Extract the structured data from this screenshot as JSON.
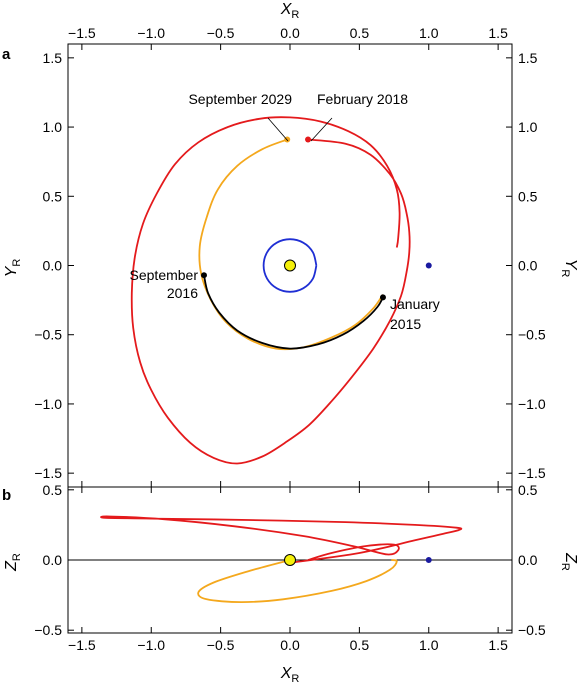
{
  "chart_data": [
    {
      "panel": "a",
      "type": "line",
      "xlabel": "X_R",
      "ylabel": "Y_R",
      "xlim": [
        -1.6,
        1.6
      ],
      "ylim": [
        -1.6,
        1.6
      ],
      "xticks": [
        -1.5,
        -1.0,
        -0.5,
        0.0,
        0.5,
        1.0,
        1.5
      ],
      "yticks": [
        -1.5,
        -1.0,
        -0.5,
        0.0,
        0.5,
        1.0,
        1.5
      ],
      "xtick_labels": [
        "−1.5",
        "−1.0",
        "−0.5",
        "0.0",
        "0.5",
        "1.0",
        "1.5"
      ],
      "ytick_labels": [
        "−1.5",
        "−1.0",
        "−0.5",
        "0.0",
        "0.5",
        "1.0",
        "1.5"
      ],
      "series": [
        {
          "color": "#e41a1c",
          "points": [
            [
              0.13,
              0.91
            ],
            [
              0.4,
              0.88
            ],
            [
              0.58,
              0.8
            ],
            [
              0.72,
              0.66
            ],
            [
              0.8,
              0.52
            ],
            [
              0.84,
              0.38
            ],
            [
              0.86,
              0.24
            ],
            [
              0.86,
              0.1
            ],
            [
              0.84,
              -0.05
            ],
            [
              0.8,
              -0.22
            ],
            [
              0.72,
              -0.4
            ],
            [
              0.6,
              -0.6
            ],
            [
              0.45,
              -0.8
            ],
            [
              0.3,
              -0.98
            ],
            [
              0.14,
              -1.15
            ],
            [
              -0.02,
              -1.27
            ],
            [
              -0.2,
              -1.38
            ],
            [
              -0.38,
              -1.43
            ],
            [
              -0.55,
              -1.39
            ],
            [
              -0.72,
              -1.28
            ],
            [
              -0.88,
              -1.1
            ],
            [
              -1.0,
              -0.9
            ],
            [
              -1.08,
              -0.7
            ],
            [
              -1.13,
              -0.45
            ],
            [
              -1.14,
              -0.2
            ],
            [
              -1.12,
              0.05
            ],
            [
              -1.06,
              0.3
            ],
            [
              -0.96,
              0.52
            ],
            [
              -0.83,
              0.73
            ],
            [
              -0.66,
              0.89
            ],
            [
              -0.45,
              1.0
            ],
            [
              -0.22,
              1.06
            ],
            [
              0.0,
              1.07
            ],
            [
              0.22,
              1.04
            ],
            [
              0.42,
              0.97
            ],
            [
              0.58,
              0.87
            ],
            [
              0.7,
              0.72
            ],
            [
              0.77,
              0.55
            ],
            [
              0.79,
              0.38
            ],
            [
              0.78,
              0.2
            ],
            [
              0.77,
              0.13
            ]
          ]
        },
        {
          "color": "#f4a81d",
          "points": [
            [
              -0.02,
              0.91
            ],
            [
              -0.2,
              0.84
            ],
            [
              -0.38,
              0.72
            ],
            [
              -0.52,
              0.55
            ],
            [
              -0.6,
              0.35
            ],
            [
              -0.65,
              0.14
            ],
            [
              -0.64,
              -0.06
            ],
            [
              -0.57,
              -0.25
            ],
            [
              -0.46,
              -0.41
            ],
            [
              -0.3,
              -0.53
            ],
            [
              -0.1,
              -0.6
            ],
            [
              0.1,
              -0.59
            ],
            [
              0.3,
              -0.52
            ],
            [
              0.47,
              -0.43
            ],
            [
              0.6,
              -0.31
            ],
            [
              0.67,
              -0.21
            ]
          ]
        },
        {
          "color": "#000000",
          "points": [
            [
              -0.62,
              -0.07
            ],
            [
              -0.59,
              -0.2
            ],
            [
              -0.51,
              -0.34
            ],
            [
              -0.38,
              -0.47
            ],
            [
              -0.2,
              -0.56
            ],
            [
              0.0,
              -0.6
            ],
            [
              0.2,
              -0.57
            ],
            [
              0.38,
              -0.5
            ],
            [
              0.53,
              -0.4
            ],
            [
              0.63,
              -0.3
            ],
            [
              0.67,
              -0.23
            ]
          ]
        },
        {
          "color": "#1f2fd4",
          "points": [
            [
              0.19,
              0.0
            ],
            [
              0.165,
              0.095
            ],
            [
              0.095,
              0.165
            ],
            [
              0.0,
              0.19
            ],
            [
              -0.095,
              0.165
            ],
            [
              -0.165,
              0.095
            ],
            [
              -0.19,
              0.0
            ],
            [
              -0.165,
              -0.095
            ],
            [
              -0.095,
              -0.165
            ],
            [
              0.0,
              -0.19
            ],
            [
              0.095,
              -0.165
            ],
            [
              0.165,
              -0.095
            ],
            [
              0.19,
              0.0
            ]
          ]
        }
      ],
      "markers": [
        {
          "x": 0.0,
          "y": 0.0,
          "color": "#f5f00a"
        },
        {
          "x": 1.0,
          "y": 0.0,
          "color": "#1a1aa0"
        },
        {
          "x": -0.02,
          "y": 0.91,
          "color": "#f4a81d"
        },
        {
          "x": 0.13,
          "y": 0.91,
          "color": "#e41a1c"
        },
        {
          "x": -0.62,
          "y": -0.07,
          "color": "#000000"
        },
        {
          "x": 0.67,
          "y": -0.23,
          "color": "#000000"
        }
      ],
      "annotations": [
        {
          "lines": [
            "September 2029"
          ]
        },
        {
          "lines": [
            "February 2018"
          ]
        },
        {
          "lines": [
            "September",
            "2016"
          ]
        },
        {
          "lines": [
            "January",
            "2015"
          ]
        }
      ]
    },
    {
      "panel": "b",
      "type": "line",
      "xlabel": "X_R",
      "ylabel": "Z_R",
      "xlim": [
        -1.6,
        1.6
      ],
      "ylim": [
        -0.52,
        0.52
      ],
      "xticks": [
        -1.5,
        -1.0,
        -0.5,
        0.0,
        0.5,
        1.0,
        1.5
      ],
      "yticks": [
        -0.5,
        0.0,
        0.5
      ],
      "xtick_labels": [
        "−1.5",
        "−1.0",
        "−0.5",
        "0.0",
        "0.5",
        "1.0",
        "1.5"
      ],
      "ytick_labels": [
        "−0.5",
        "0.0",
        "0.5"
      ],
      "series": [
        {
          "color": "#e41a1c",
          "points": [
            [
              0.13,
              0.0
            ],
            [
              0.3,
              0.05
            ],
            [
              0.55,
              0.1
            ],
            [
              0.75,
              0.11
            ],
            [
              0.78,
              0.07
            ],
            [
              0.7,
              0.04
            ],
            [
              0.45,
              0.1
            ],
            [
              0.1,
              0.17
            ],
            [
              -0.4,
              0.24
            ],
            [
              -0.9,
              0.29
            ],
            [
              -1.3,
              0.31
            ],
            [
              -1.33,
              0.3
            ],
            [
              -1.0,
              0.295
            ],
            [
              -0.3,
              0.285
            ],
            [
              0.4,
              0.27
            ],
            [
              0.9,
              0.25
            ],
            [
              1.2,
              0.23
            ],
            [
              1.22,
              0.215
            ],
            [
              1.12,
              0.19
            ],
            [
              0.9,
              0.14
            ],
            [
              0.5,
              0.05
            ],
            [
              0.0,
              -0.02
            ]
          ]
        },
        {
          "color": "#f4a81d",
          "points": [
            [
              0.0,
              0.0
            ],
            [
              -0.3,
              -0.08
            ],
            [
              -0.55,
              -0.16
            ],
            [
              -0.66,
              -0.23
            ],
            [
              -0.6,
              -0.28
            ],
            [
              -0.35,
              -0.3
            ],
            [
              -0.05,
              -0.28
            ],
            [
              0.3,
              -0.22
            ],
            [
              0.55,
              -0.15
            ],
            [
              0.72,
              -0.07
            ],
            [
              0.77,
              -0.01
            ],
            [
              0.73,
              0.0
            ]
          ]
        }
      ],
      "markers": [
        {
          "x": 0.0,
          "y": 0.0,
          "color": "#f5f00a"
        },
        {
          "x": 1.0,
          "y": 0.0,
          "color": "#1a1aa0"
        }
      ]
    }
  ],
  "labels": {
    "xlabel_top": "X",
    "xlabel_bottom": "X",
    "ylabel_a": "Y",
    "ylabel_b": "Z",
    "subscript": "R",
    "panel_a": "a",
    "panel_b": "b"
  }
}
